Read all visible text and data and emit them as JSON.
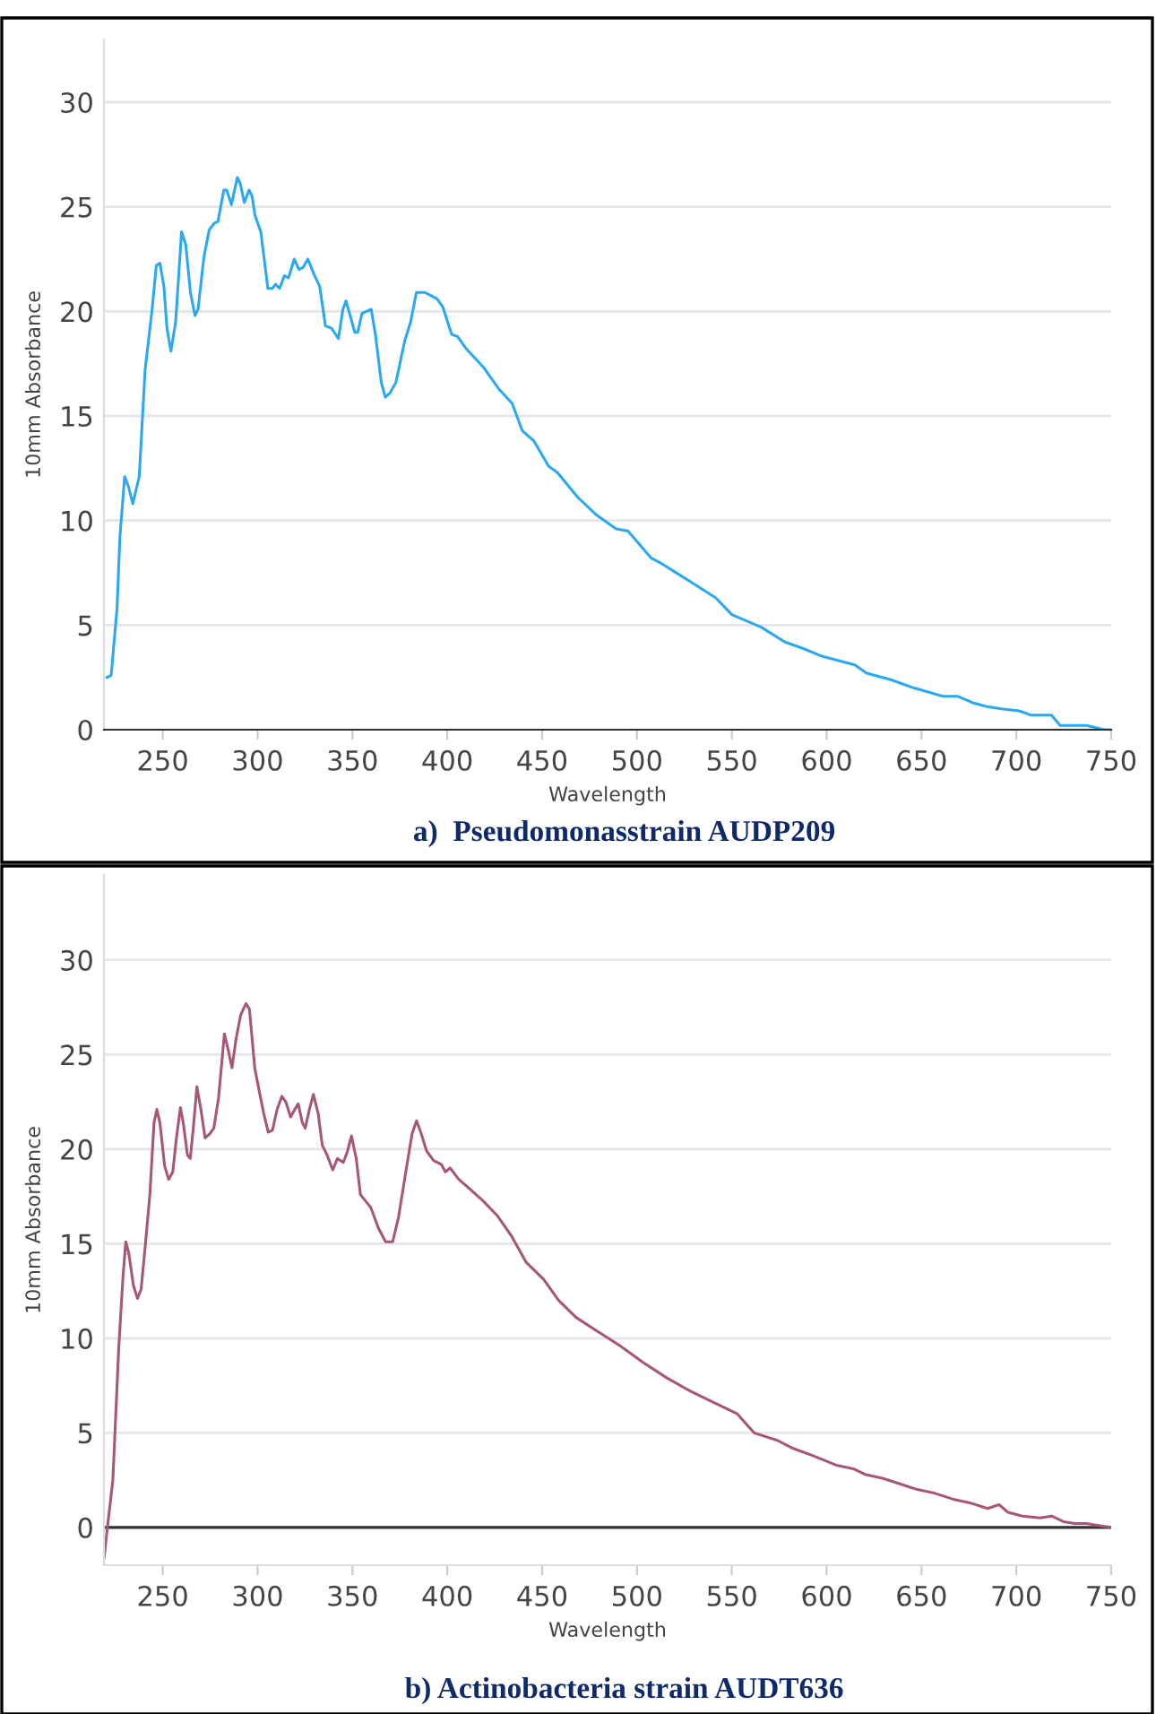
{
  "chart_data": [
    {
      "type": "line",
      "xlabel": "Wavelength",
      "ylabel": "10mm Absorbance",
      "xlim": [
        219,
        750
      ],
      "ylim": [
        0,
        33
      ],
      "xticks": [
        250,
        300,
        350,
        400,
        450,
        500,
        550,
        600,
        650,
        700,
        750
      ],
      "yticks": [
        0,
        5,
        10,
        15,
        20,
        25,
        30
      ],
      "grid": "y",
      "annotations": [
        "a)  Pseudomonasstrain AUDP209"
      ],
      "series": [
        {
          "color": "#2aa8f2",
          "x": [
            220.6,
            222.8,
            225.9,
            227.4,
            229.9,
            232.0,
            234.2,
            237.6,
            240.7,
            244.4,
            246.6,
            248.5,
            250.6,
            252.2,
            254.3,
            256.8,
            259.9,
            262.1,
            264.6,
            267.0,
            268.6,
            271.7,
            274.5,
            277.0,
            279.1,
            282.2,
            283.7,
            286.2,
            289.3,
            290.9,
            293.0,
            295.5,
            297.1,
            298.6,
            301.7,
            305.4,
            307.9,
            309.4,
            311.6,
            314.1,
            316.3,
            319.3,
            321.8,
            324.0,
            326.5,
            329.6,
            332.7,
            335.8,
            338.9,
            342.6,
            345.0,
            346.6,
            348.8,
            351.2,
            352.8,
            355.0,
            357.4,
            359.9,
            362.1,
            365.2,
            367.3,
            369.8,
            372.9,
            377.6,
            380.7,
            383.7,
            388.4,
            394.6,
            397.7,
            402.3,
            405.4,
            410.1,
            419.3,
            427.1,
            434.2,
            439.5,
            445.7,
            453.4,
            458.0,
            468.9,
            478.2,
            489.0,
            495.2,
            507.6,
            513.8,
            527.7,
            541.6,
            550,
            565.5,
            577.8,
            587.1,
            597.9,
            614.9,
            621.1,
            633.5,
            645.8,
            653.6,
            661.3,
            669.0,
            676.7,
            684.5,
            692.2,
            701.5,
            707.6,
            718.5,
            723.1,
            737.0,
            746.3,
            750
          ],
          "values": [
            2.5,
            2.6,
            5.8,
            9.2,
            12.1,
            11.6,
            10.8,
            12.1,
            17.2,
            20.1,
            22.2,
            22.3,
            21.2,
            19.2,
            18.1,
            19.5,
            23.8,
            23.2,
            20.9,
            19.8,
            20.1,
            22.6,
            23.9,
            24.2,
            24.3,
            25.8,
            25.8,
            25.1,
            26.4,
            26.1,
            25.2,
            25.8,
            25.5,
            24.6,
            23.8,
            21.1,
            21.1,
            21.3,
            21.1,
            21.7,
            21.6,
            22.5,
            22.0,
            22.1,
            22.5,
            21.8,
            21.2,
            19.3,
            19.2,
            18.7,
            20.1,
            20.5,
            19.8,
            19.0,
            19.0,
            19.9,
            20.0,
            20.1,
            18.9,
            16.6,
            15.9,
            16.1,
            16.6,
            18.6,
            19.5,
            20.9,
            20.9,
            20.6,
            20.2,
            18.9,
            18.8,
            18.2,
            17.3,
            16.3,
            15.6,
            14.3,
            13.8,
            12.6,
            12.3,
            11.1,
            10.3,
            9.6,
            9.5,
            8.2,
            7.9,
            7.1,
            6.3,
            5.5,
            4.9,
            4.2,
            3.9,
            3.5,
            3.1,
            2.7,
            2.4,
            2.0,
            1.8,
            1.6,
            1.6,
            1.3,
            1.1,
            1.0,
            0.9,
            0.7,
            0.7,
            0.2,
            0.2,
            0.0,
            0.0
          ]
        }
      ]
    },
    {
      "type": "line",
      "xlabel": "Wavelength",
      "ylabel": "10mm Absorbance",
      "xlim": [
        219,
        750
      ],
      "ylim": [
        -2,
        34.5
      ],
      "xticks": [
        250,
        300,
        350,
        400,
        450,
        500,
        550,
        600,
        650,
        700,
        750
      ],
      "yticks": [
        0,
        5,
        10,
        15,
        20,
        25,
        30
      ],
      "grid": "y",
      "ref_lines": [
        {
          "axis": "y",
          "value": 0,
          "color": "#333333"
        }
      ],
      "annotations": [
        "b) Actinobacteria strain AUDT636"
      ],
      "series": [
        {
          "color": "#a8557a",
          "x": [
            219.1,
            220.6,
            223.7,
            226.8,
            229.0,
            230.5,
            232.1,
            234.5,
            236.7,
            238.6,
            240.7,
            243.2,
            245.4,
            246.9,
            248.5,
            251.0,
            253.1,
            255.3,
            257.1,
            259.3,
            260.8,
            263.0,
            264.5,
            266.1,
            268.0,
            270.1,
            272.3,
            274.7,
            276.9,
            279.4,
            282.5,
            284.6,
            286.5,
            288.6,
            291.1,
            293.9,
            295.7,
            298.5,
            301.0,
            303.2,
            305.6,
            307.8,
            310.3,
            312.8,
            314.9,
            317.4,
            319.6,
            321.4,
            323.6,
            325.1,
            327.3,
            329.4,
            331.9,
            334.1,
            336.6,
            339.6,
            342.1,
            345.2,
            347.4,
            349.5,
            352.0,
            354.2,
            356.6,
            359.7,
            363.8,
            367.5,
            371.2,
            374.3,
            378.3,
            381.4,
            383.8,
            386.0,
            389.1,
            392.8,
            396.8,
            399.0,
            401.5,
            406.1,
            410.7,
            418.5,
            426.2,
            433.9,
            441.7,
            450.9,
            458.7,
            467.9,
            478.7,
            491.1,
            503.5,
            515.8,
            528.2,
            540.6,
            552.9,
            561.7,
            574.0,
            581.7,
            592.5,
            604.8,
            614.0,
            620.2,
            629.4,
            638.6,
            647.8,
            657.1,
            666.3,
            675.5,
            684.8,
            690.9,
            695.5,
            703.2,
            712.5,
            718.6,
            724.8,
            730.9,
            737.0,
            743.2,
            750
          ],
          "values": [
            -1.6,
            -0.2,
            2.5,
            9.5,
            13.2,
            15.1,
            14.5,
            12.8,
            12.1,
            12.6,
            14.8,
            17.6,
            21.4,
            22.1,
            21.4,
            19.1,
            18.4,
            18.8,
            20.5,
            22.2,
            21.4,
            19.7,
            19.5,
            21.1,
            23.3,
            22.1,
            20.6,
            20.8,
            21.1,
            22.7,
            26.1,
            25.2,
            24.3,
            25.8,
            27.1,
            27.7,
            27.4,
            24.3,
            23.0,
            21.9,
            20.9,
            21.0,
            22.1,
            22.8,
            22.5,
            21.7,
            22.1,
            22.4,
            21.4,
            21.1,
            22.1,
            22.9,
            21.9,
            20.2,
            19.7,
            18.9,
            19.5,
            19.3,
            19.9,
            20.7,
            19.5,
            17.6,
            17.3,
            16.9,
            15.8,
            15.1,
            15.1,
            16.4,
            18.9,
            20.8,
            21.5,
            20.9,
            19.9,
            19.4,
            19.2,
            18.8,
            19.0,
            18.4,
            18.0,
            17.3,
            16.5,
            15.4,
            14.0,
            13.1,
            12.0,
            11.1,
            10.4,
            9.6,
            8.7,
            7.9,
            7.2,
            6.6,
            6.0,
            5.0,
            4.6,
            4.2,
            3.8,
            3.3,
            3.1,
            2.8,
            2.6,
            2.3,
            2.0,
            1.8,
            1.5,
            1.3,
            1.0,
            1.2,
            0.8,
            0.6,
            0.5,
            0.6,
            0.3,
            0.2,
            0.2,
            0.1,
            0.0
          ]
        }
      ]
    }
  ]
}
